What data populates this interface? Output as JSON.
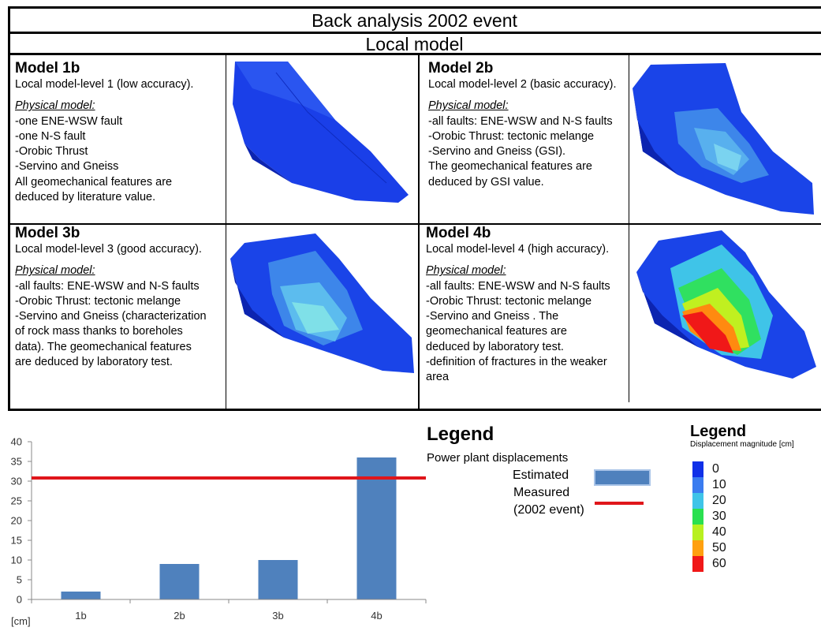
{
  "header": {
    "title": "Back analysis 2002 event",
    "subtitle": "Local model"
  },
  "models": [
    {
      "name": "Model 1b",
      "level": "Local model-level 1 (low accuracy).",
      "physical_label": "Physical model:",
      "lines": [
        "-one ENE-WSW fault",
        "-one N-S fault",
        "-Orobic Thrust",
        "-Servino and Gneiss",
        "All geomechanical features are",
        "deduced by literature value."
      ]
    },
    {
      "name": "Model 2b",
      "level": "Local model-level 2 (basic accuracy).",
      "physical_label": "Physical model:",
      "lines": [
        "-all faults: ENE-WSW and N-S faults",
        "-Orobic Thrust: tectonic melange",
        "-Servino and Gneiss (GSI).",
        "The geomechanical features are",
        "deduced by GSI value."
      ]
    },
    {
      "name": "Model 3b",
      "level": "Local model-level 3 (good accuracy).",
      "physical_label": "Physical model:",
      "lines": [
        "-all faults: ENE-WSW and N-S faults",
        "-Orobic Thrust: tectonic melange",
        "-Servino and Gneiss (characterization",
        "of rock mass thanks to boreholes",
        "data). The geomechanical features",
        "are deduced by laboratory test."
      ]
    },
    {
      "name": "Model 4b",
      "level": "Local model-level 4 (high accuracy).",
      "physical_label": "Physical model:",
      "lines": [
        "-all faults: ENE-WSW and N-S faults",
        "-Orobic Thrust: tectonic melange",
        "-Servino and Gneiss .  The",
        "geomechanical features are",
        "deduced by laboratory test.",
        "-definition of fractures in the weaker",
        "area"
      ]
    }
  ],
  "legend": {
    "title": "Legend",
    "subtitle": "Power plant displacements",
    "estimated": "Estimated",
    "measured_line1": "Measured",
    "measured_line2": "(2002 event)",
    "colors": {
      "estimated": "#4f81bd",
      "measured": "#e0161b"
    }
  },
  "colorbar": {
    "title": "Legend",
    "subtitle": "Displacement magnitude [cm]",
    "levels": [
      {
        "label": "0",
        "color": "#1030e8"
      },
      {
        "label": "10",
        "color": "#3a7cf0"
      },
      {
        "label": "20",
        "color": "#3fc4e8"
      },
      {
        "label": "30",
        "color": "#2ae050"
      },
      {
        "label": "40",
        "color": "#b8f020"
      },
      {
        "label": "50",
        "color": "#ffa010"
      },
      {
        "label": "60",
        "color": "#f01818"
      }
    ]
  },
  "chart_data": {
    "type": "bar",
    "categories": [
      "1b",
      "2b",
      "3b",
      "4b"
    ],
    "values": [
      2,
      9,
      10,
      36
    ],
    "ylim": [
      0,
      40
    ],
    "yticks": [
      0,
      5,
      10,
      15,
      20,
      25,
      30,
      35,
      40
    ],
    "reference_line": 30.8,
    "unit_label": "[cm]",
    "grid": false
  }
}
